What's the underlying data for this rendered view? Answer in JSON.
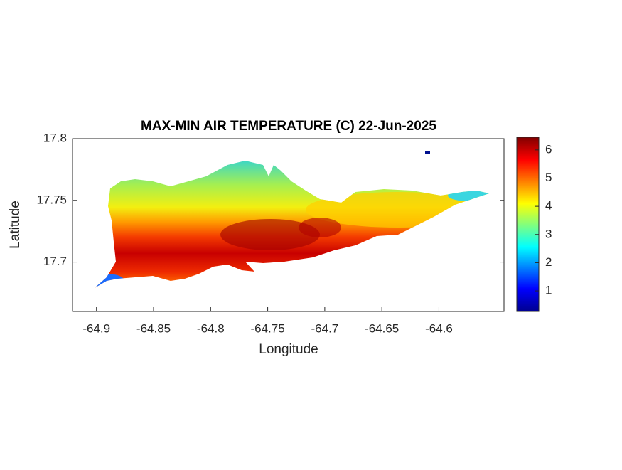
{
  "chart_data": {
    "type": "contour-map",
    "title": "MAX-MIN AIR TEMPERATURE (C) 22-Jun-2025",
    "xlabel": "Longitude",
    "ylabel": "Latitude",
    "xlim": [
      -64.921,
      -64.543
    ],
    "xticks": [
      -64.9,
      -64.85,
      -64.8,
      -64.75,
      -64.7,
      -64.65,
      -64.6
    ],
    "ylim": [
      17.66,
      17.8
    ],
    "yticks": [
      17.7,
      17.75,
      17.8
    ],
    "colorbar": {
      "clim": [
        0.27,
        6.45
      ],
      "ticks": [
        1,
        2,
        3,
        4,
        5,
        6
      ],
      "colormap": "jet"
    }
  }
}
